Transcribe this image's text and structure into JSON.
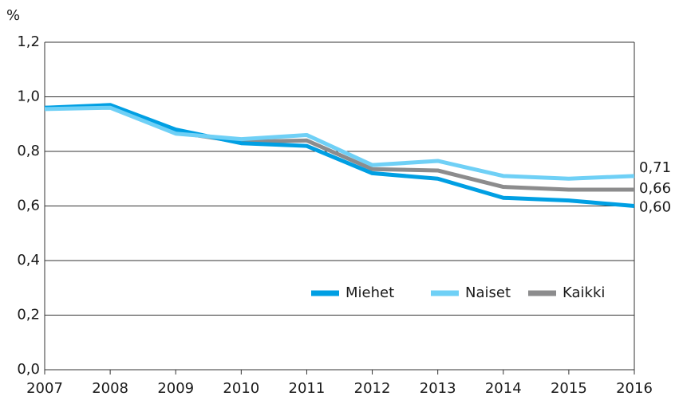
{
  "chart_data": {
    "type": "line",
    "y_label": "%",
    "x": [
      2007,
      2008,
      2009,
      2010,
      2011,
      2012,
      2013,
      2014,
      2015,
      2016
    ],
    "xlim": [
      2007,
      2016
    ],
    "xticks": [
      2007,
      2008,
      2009,
      2010,
      2011,
      2012,
      2013,
      2014,
      2015,
      2016
    ],
    "ylim": [
      0,
      1.2
    ],
    "yticks": [
      {
        "value": 0,
        "label": "0,0"
      },
      {
        "value": 0.2,
        "label": "0,2"
      },
      {
        "value": 0.4,
        "label": "0,4"
      },
      {
        "value": 0.6,
        "label": "0,6"
      },
      {
        "value": 0.8,
        "label": "0,8"
      },
      {
        "value": 1.0,
        "label": "1,0"
      },
      {
        "value": 1.2,
        "label": "1,2"
      }
    ],
    "grid": true,
    "legend": "lower right",
    "series": [
      {
        "name": "Kaikki",
        "color": "#8c8c8d",
        "values": [
          0.96,
          0.965,
          0.87,
          0.835,
          0.84,
          0.735,
          0.73,
          0.67,
          0.66,
          0.66
        ],
        "value_labels": [
          null,
          null,
          null,
          null,
          null,
          null,
          null,
          null,
          null,
          "0,66"
        ]
      },
      {
        "name": "Miehet",
        "color": "#009fe3",
        "values": [
          0.96,
          0.97,
          0.88,
          0.83,
          0.82,
          0.72,
          0.7,
          0.63,
          0.62,
          0.6
        ],
        "value_labels": [
          null,
          null,
          null,
          null,
          null,
          null,
          null,
          null,
          null,
          "0,60"
        ]
      },
      {
        "name": "Naiset",
        "color": "#6fd0f6",
        "values": [
          0.955,
          0.96,
          0.865,
          0.845,
          0.86,
          0.75,
          0.765,
          0.71,
          0.7,
          0.71
        ],
        "value_labels": [
          null,
          null,
          null,
          null,
          null,
          null,
          null,
          null,
          null,
          "0,71"
        ]
      }
    ]
  }
}
